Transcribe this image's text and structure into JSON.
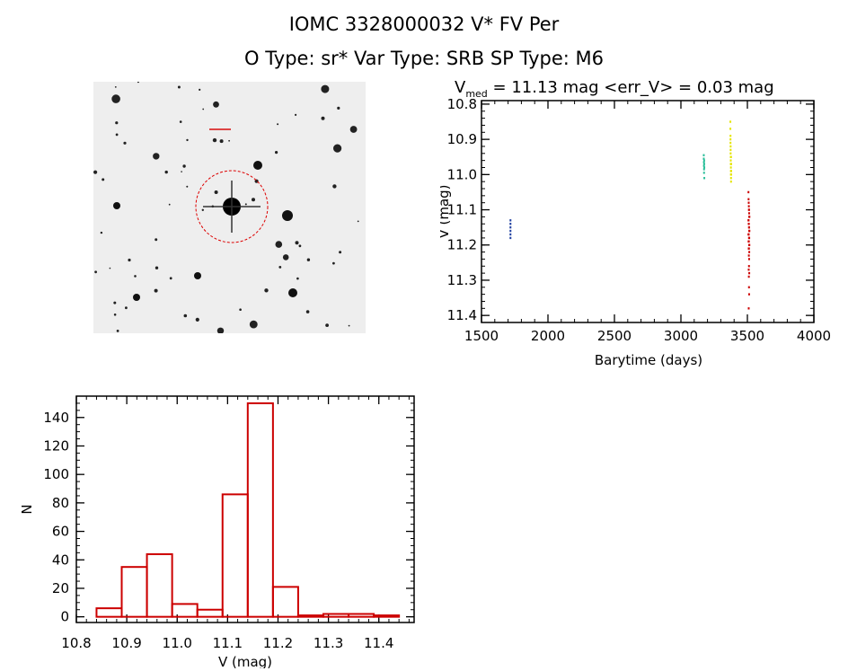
{
  "header": {
    "title_line1": "IOMC 3328000032    V* FV Per",
    "title_line2": "O Type: sr*  Var Type: SRB  SP Type: M6"
  },
  "colors": {
    "axes": "#000000",
    "histogram": "#cc0000",
    "aperture": "#dd0000",
    "series_blue": "#1f3fa0",
    "series_cyan": "#2bbf9a",
    "series_yellow": "#e5e500",
    "series_red": "#cc0000"
  },
  "sky_image": {
    "type": "star-field-thumbnail",
    "target": "V* FV Per",
    "aperture_circle": true
  },
  "chart_data": [
    {
      "type": "scatter",
      "title_prefix": "V",
      "title_subscript": "med",
      "title_suffix": " = 11.13 mag <err_V> = 0.03 mag",
      "xlabel": "Barytime (days)",
      "ylabel": "V (mag)",
      "xlim": [
        1500,
        4000
      ],
      "ylim": [
        11.42,
        10.79
      ],
      "y_inverted": true,
      "xticks": [
        1500,
        2000,
        2500,
        3000,
        3500,
        4000
      ],
      "yticks": [
        10.8,
        10.9,
        11.0,
        11.1,
        11.2,
        11.3,
        11.4
      ],
      "ytick_labels": [
        "10.8",
        "10.9",
        "11.0",
        "11.1",
        "11.2",
        "11.3",
        "11.4"
      ],
      "grid": false,
      "series": [
        {
          "color": "blue",
          "x": [
            1718,
            1718,
            1718,
            1718,
            1718,
            1718
          ],
          "y": [
            11.13,
            11.14,
            11.15,
            11.16,
            11.17,
            11.18
          ]
        },
        {
          "color": "cyan",
          "x": [
            3172,
            3172,
            3173,
            3173,
            3174,
            3174,
            3175,
            3175,
            3176,
            3176
          ],
          "y": [
            10.945,
            10.955,
            10.965,
            10.975,
            10.985,
            10.995,
            10.96,
            10.97,
            10.98,
            11.01
          ]
        },
        {
          "color": "yellow",
          "x": [
            3372,
            3372,
            3373,
            3373,
            3373,
            3374,
            3374,
            3374,
            3375,
            3375,
            3375,
            3376,
            3376,
            3376,
            3377,
            3377,
            3377,
            3378,
            3378,
            3378
          ],
          "y": [
            10.85,
            10.87,
            10.89,
            10.9,
            10.91,
            10.92,
            10.93,
            10.94,
            10.95,
            10.96,
            10.97,
            10.98,
            10.99,
            11.0,
            11.01,
            11.02,
            10.95,
            10.97,
            10.99,
            11.0
          ]
        },
        {
          "color": "red",
          "x": [
            3508,
            3509,
            3510,
            3511,
            3512,
            3513,
            3514,
            3515,
            3508,
            3509,
            3510,
            3511,
            3512,
            3513,
            3514,
            3515,
            3508,
            3510,
            3512,
            3514,
            3509,
            3511,
            3513,
            3515,
            3510,
            3512,
            3514,
            3511,
            3513,
            3512,
            3510,
            3514,
            3511,
            3512,
            3513,
            3510,
            3512
          ],
          "y": [
            11.05,
            11.07,
            11.08,
            11.09,
            11.1,
            11.11,
            11.12,
            11.12,
            11.13,
            11.13,
            11.14,
            11.14,
            11.15,
            11.15,
            11.16,
            11.16,
            11.17,
            11.17,
            11.18,
            11.18,
            11.19,
            11.19,
            11.2,
            11.2,
            11.21,
            11.21,
            11.22,
            11.23,
            11.24,
            11.26,
            11.27,
            11.28,
            11.29,
            11.32,
            11.34,
            11.38,
            11.1
          ]
        }
      ]
    },
    {
      "type": "bar",
      "subtype": "histogram",
      "xlabel": "V (mag)",
      "ylabel": "N",
      "xlim": [
        10.8,
        11.47
      ],
      "ylim": [
        -4,
        155
      ],
      "xticks": [
        10.8,
        10.9,
        11.0,
        11.1,
        11.2,
        11.3,
        11.4
      ],
      "xtick_labels": [
        "10.8",
        "10.9",
        "11.0",
        "11.1",
        "11.2",
        "11.3",
        "11.4"
      ],
      "yticks": [
        0,
        20,
        40,
        60,
        80,
        100,
        120,
        140
      ],
      "ytick_labels": [
        "0",
        "20",
        "40",
        "60",
        "80",
        "100",
        "120",
        "140"
      ],
      "bin_width": 0.05,
      "bin_starts": [
        10.84,
        10.89,
        10.94,
        10.99,
        11.04,
        11.09,
        11.14,
        11.19,
        11.24,
        11.29,
        11.34,
        11.39
      ],
      "values": [
        6,
        35,
        44,
        9,
        5,
        86,
        150,
        21,
        1,
        2,
        2,
        1
      ]
    }
  ]
}
